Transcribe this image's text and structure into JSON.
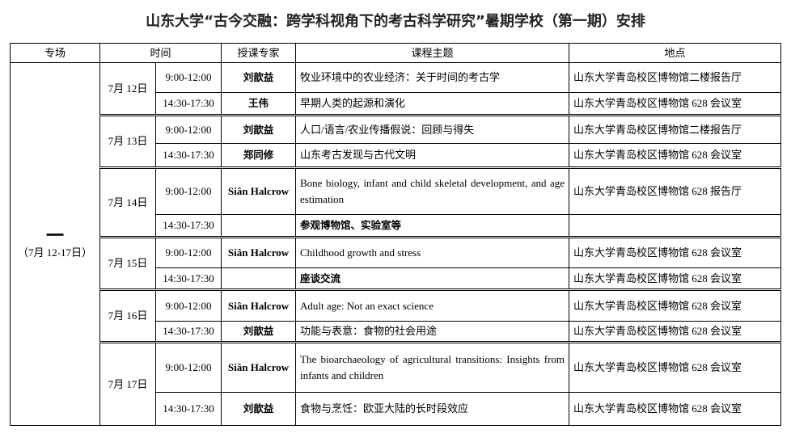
{
  "title": "山东大学“古今交融：跨学科视角下的考古科学研究”暑期学校（第一期）安排",
  "headers": {
    "session": "专场",
    "time": "时间",
    "expert": "授课专家",
    "topic": "课程主题",
    "location": "地点"
  },
  "session": {
    "mark": "一",
    "range": "（7月 12-17日）"
  },
  "days": [
    {
      "date": "7月 12日",
      "rows": [
        {
          "time": "9:00-12:00",
          "expert": "刘歆益",
          "topic": "牧业环境中的农业经济：关于时间的考古学",
          "location": "山东大学青岛校区博物馆二楼报告厅"
        },
        {
          "time": "14:30-17:30",
          "expert": "王伟",
          "topic": "早期人类的起源和演化",
          "location": "山东大学青岛校区博物馆 628 会议室"
        }
      ]
    },
    {
      "date": "7月 13日",
      "rows": [
        {
          "time": "9:00-12:00",
          "expert": "刘歆益",
          "topic": "人口/语言/农业传播假说：回顾与得失",
          "location": "山东大学青岛校区博物馆二楼报告厅"
        },
        {
          "time": "14:30-17:30",
          "expert": "郑同修",
          "topic": "山东考古发现与古代文明",
          "location": "山东大学青岛校区博物馆 628 会议室"
        }
      ]
    },
    {
      "date": "7月 14日",
      "rows": [
        {
          "time": "9:00-12:00",
          "expert": "Siân Halcrow",
          "topic": "Bone biology, infant and child skeletal development, and age estimation",
          "location": "山东大学青岛校区博物馆 628 报告厅"
        },
        {
          "time": "14:30-17:30",
          "expert": "",
          "topic": "参观博物馆、实验室等",
          "location": "",
          "topic_bold": true
        }
      ]
    },
    {
      "date": "7月 15日",
      "rows": [
        {
          "time": "9:00-12:00",
          "expert": "Siân Halcrow",
          "topic": "Childhood growth and stress",
          "location": "山东大学青岛校区博物馆 628 会议室"
        },
        {
          "time": "14:30-17:30",
          "expert": "",
          "topic": "座谈交流",
          "location": "山东大学青岛校区博物馆 628 会议室",
          "topic_bold": true
        }
      ]
    },
    {
      "date": "7月 16日",
      "rows": [
        {
          "time": "9:00-12:00",
          "expert": "Siân Halcrow",
          "topic": "Adult age: Not an exact science",
          "location": "山东大学青岛校区博物馆 628 会议室"
        },
        {
          "time": "14:30-17:30",
          "expert": "刘歆益",
          "topic": "功能与表意：食物的社会用途",
          "location": "山东大学青岛校区博物馆 628 会议室"
        }
      ]
    },
    {
      "date": "7月 17日",
      "rows": [
        {
          "time": "9:00-12:00",
          "expert": "Siân Halcrow",
          "topic": "The bioarchaeology of agricultural transitions: Insights from infants and children",
          "location": "山东大学青岛校区博物馆 628 会议室"
        },
        {
          "time": "14:30-17:30",
          "expert": "刘歆益",
          "topic": "食物与烹饪：欧亚大陆的长时段效应",
          "location": "山东大学青岛校区博物馆 628 会议室"
        }
      ]
    }
  ]
}
